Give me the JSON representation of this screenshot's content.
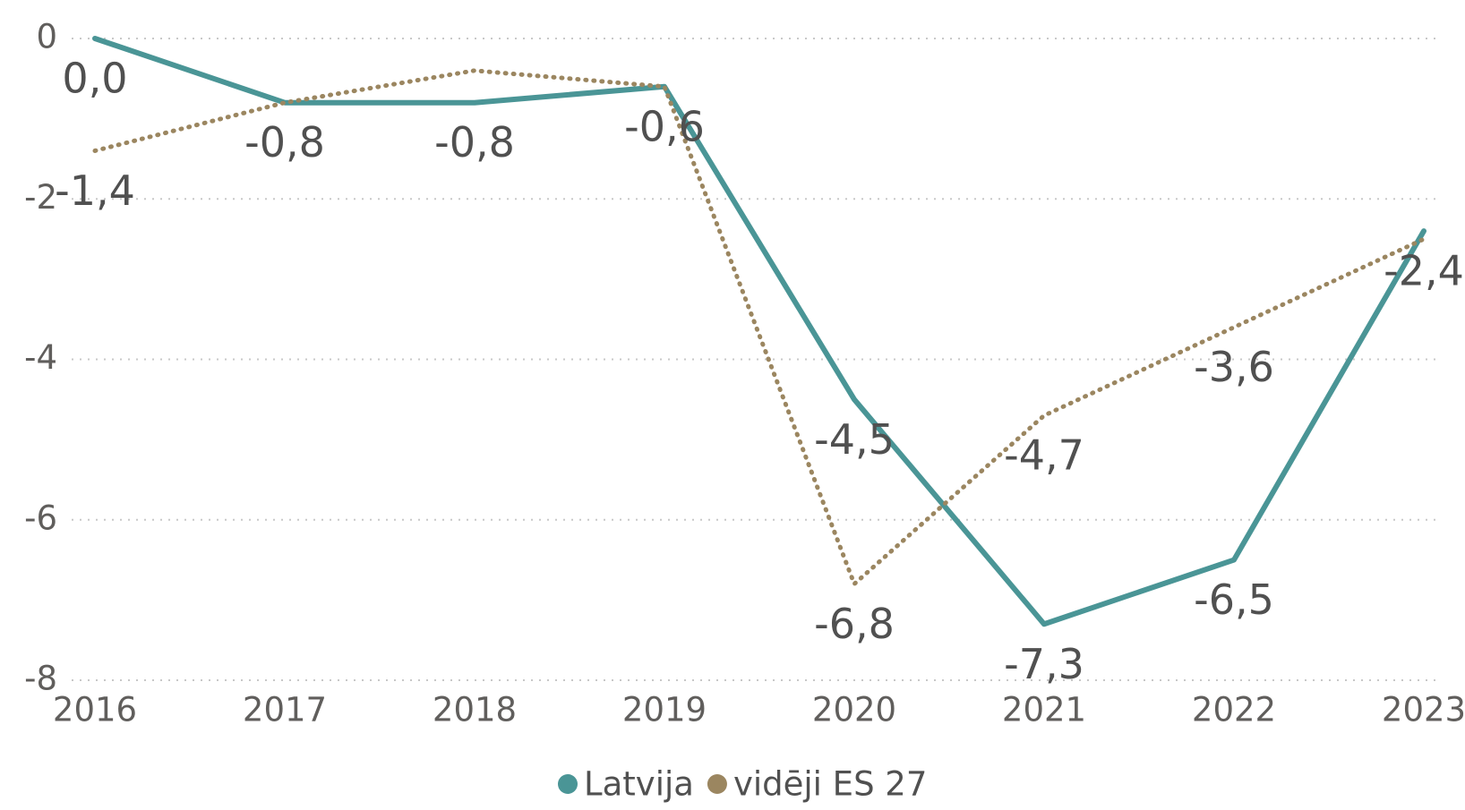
{
  "chart_data": {
    "type": "line",
    "categories": [
      "2016",
      "2017",
      "2018",
      "2019",
      "2020",
      "2021",
      "2022",
      "2023"
    ],
    "series": [
      {
        "name": "Latvija",
        "color": "#4a9596",
        "values": [
          0.0,
          -0.8,
          -0.8,
          -0.6,
          -4.5,
          -7.3,
          -6.5,
          -2.4
        ],
        "value_labels": [
          "0,0",
          "-0,8",
          "-0,8",
          "-0,6",
          "-4,5",
          "-7,3",
          "-6,5",
          "-2,4"
        ]
      },
      {
        "name": "vidēji ES 27",
        "color": "#9b8660",
        "dashed": true,
        "values": [
          -1.4,
          -0.8,
          -0.4,
          -0.6,
          -6.8,
          -4.7,
          -3.6,
          -2.5
        ],
        "value_labels": [
          "-1,4",
          null,
          null,
          null,
          "-6,8",
          "-4,7",
          "-3,6",
          null
        ]
      }
    ],
    "ylim": [
      -8,
      0
    ],
    "yticks": [
      0,
      -2,
      -4,
      -6,
      -8
    ],
    "grid": true,
    "legend": "bottom"
  }
}
